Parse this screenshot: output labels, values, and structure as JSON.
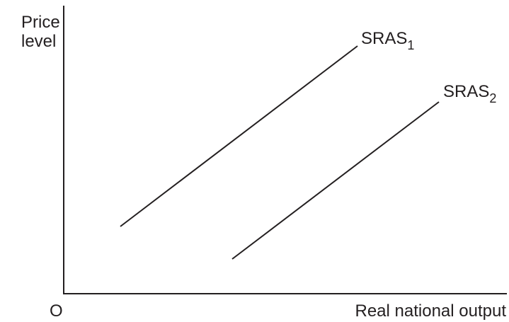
{
  "axes": {
    "y_label": [
      "Price",
      "level"
    ],
    "origin": "O",
    "x_label": "Real national output"
  },
  "curves": [
    {
      "name": "SRAS",
      "subscript": "1"
    },
    {
      "name": "SRAS",
      "subscript": "2"
    }
  ]
}
